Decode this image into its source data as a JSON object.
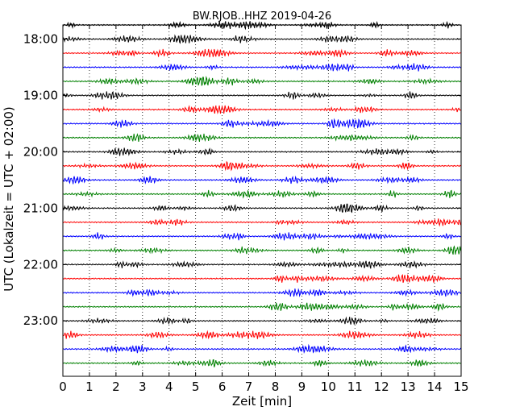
{
  "chart_data": {
    "type": "line",
    "title": "BW.RJOB..HHZ 2019-04-26",
    "xlabel": "Zeit  [min]",
    "ylabel": "UTC (Lokalzeit = UTC + 02:00)",
    "xlim": [
      0,
      15
    ],
    "xticks": [
      0,
      1,
      2,
      3,
      4,
      5,
      6,
      7,
      8,
      9,
      10,
      11,
      12,
      13,
      14,
      15
    ],
    "y_tick_labels": [
      "18:00",
      "19:00",
      "20:00",
      "21:00",
      "22:00",
      "23:00"
    ],
    "ylim": [
      "17:45",
      "23:59"
    ],
    "trace_interval_minutes": 15,
    "trace_colors": [
      "#000000",
      "#ff0000",
      "#0000ff",
      "#008000"
    ],
    "grid": "vertical dotted lines at each minute",
    "series": [
      {
        "start": "17:45",
        "color": "#000000"
      },
      {
        "start": "18:00",
        "color": "#000000"
      },
      {
        "start": "18:15",
        "color": "#ff0000"
      },
      {
        "start": "18:30",
        "color": "#0000ff"
      },
      {
        "start": "18:45",
        "color": "#008000"
      },
      {
        "start": "19:00",
        "color": "#000000"
      },
      {
        "start": "19:15",
        "color": "#ff0000"
      },
      {
        "start": "19:30",
        "color": "#0000ff"
      },
      {
        "start": "19:45",
        "color": "#008000"
      },
      {
        "start": "20:00",
        "color": "#000000"
      },
      {
        "start": "20:15",
        "color": "#ff0000"
      },
      {
        "start": "20:30",
        "color": "#0000ff"
      },
      {
        "start": "20:45",
        "color": "#008000"
      },
      {
        "start": "21:00",
        "color": "#000000"
      },
      {
        "start": "21:15",
        "color": "#ff0000"
      },
      {
        "start": "21:30",
        "color": "#0000ff"
      },
      {
        "start": "21:45",
        "color": "#008000"
      },
      {
        "start": "22:00",
        "color": "#000000"
      },
      {
        "start": "22:15",
        "color": "#ff0000"
      },
      {
        "start": "22:30",
        "color": "#0000ff"
      },
      {
        "start": "22:45",
        "color": "#008000"
      },
      {
        "start": "23:00",
        "color": "#000000"
      },
      {
        "start": "23:15",
        "color": "#ff0000"
      },
      {
        "start": "23:30",
        "color": "#0000ff"
      },
      {
        "start": "23:45",
        "color": "#008000"
      }
    ]
  }
}
